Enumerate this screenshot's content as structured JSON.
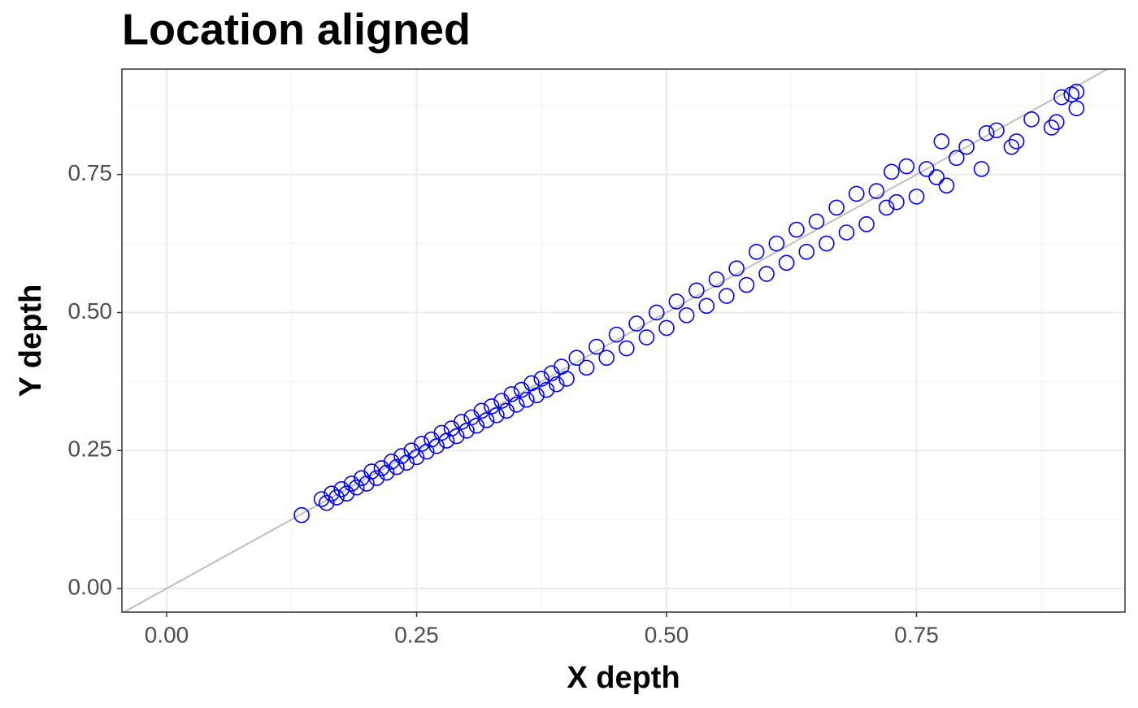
{
  "chart_data": {
    "type": "scatter",
    "title": "Location aligned",
    "x_label": "X depth",
    "y_label": "Y depth",
    "xlim": [
      -0.0447,
      0.9585
    ],
    "ylim": [
      -0.0427,
      0.941
    ],
    "xticks": [
      {
        "value": 0,
        "label": "0.00"
      },
      {
        "value": 0.25,
        "label": "0.25"
      },
      {
        "value": 0.5,
        "label": "0.50"
      },
      {
        "value": 0.75,
        "label": "0.75"
      }
    ],
    "yticks": [
      {
        "value": 0,
        "label": "0.00"
      },
      {
        "value": 0.25,
        "label": "0.25"
      },
      {
        "value": 0.5,
        "label": "0.50"
      },
      {
        "value": 0.75,
        "label": "0.75"
      }
    ],
    "x_minor_ticks": [
      0.125,
      0.375,
      0.625,
      0.875
    ],
    "y_minor_ticks": [
      0.125,
      0.375,
      0.625,
      0.875
    ],
    "grid": true,
    "color": "#0000ff",
    "reference_line": {
      "slope": 1,
      "intercept": 0,
      "color": "#bebebe"
    },
    "x": [
      0.135,
      0.155,
      0.16,
      0.165,
      0.17,
      0.175,
      0.18,
      0.185,
      0.19,
      0.195,
      0.2,
      0.205,
      0.21,
      0.215,
      0.22,
      0.225,
      0.23,
      0.235,
      0.24,
      0.245,
      0.25,
      0.255,
      0.26,
      0.265,
      0.27,
      0.275,
      0.28,
      0.285,
      0.29,
      0.295,
      0.3,
      0.305,
      0.31,
      0.315,
      0.32,
      0.325,
      0.33,
      0.335,
      0.34,
      0.345,
      0.35,
      0.355,
      0.36,
      0.365,
      0.37,
      0.375,
      0.38,
      0.385,
      0.39,
      0.395,
      0.4,
      0.41,
      0.42,
      0.43,
      0.44,
      0.45,
      0.46,
      0.47,
      0.48,
      0.49,
      0.5,
      0.51,
      0.52,
      0.53,
      0.54,
      0.55,
      0.56,
      0.57,
      0.58,
      0.59,
      0.6,
      0.61,
      0.62,
      0.63,
      0.64,
      0.65,
      0.66,
      0.67,
      0.68,
      0.69,
      0.7,
      0.71,
      0.72,
      0.725,
      0.73,
      0.74,
      0.75,
      0.76,
      0.77,
      0.775,
      0.78,
      0.79,
      0.8,
      0.815,
      0.82,
      0.83,
      0.845,
      0.85,
      0.865,
      0.885,
      0.89,
      0.895,
      0.905,
      0.91,
      0.91
    ],
    "y": [
      0.133,
      0.162,
      0.155,
      0.172,
      0.165,
      0.18,
      0.172,
      0.19,
      0.183,
      0.2,
      0.19,
      0.212,
      0.2,
      0.218,
      0.21,
      0.23,
      0.22,
      0.24,
      0.228,
      0.25,
      0.238,
      0.262,
      0.248,
      0.27,
      0.258,
      0.282,
      0.268,
      0.29,
      0.276,
      0.302,
      0.286,
      0.31,
      0.295,
      0.322,
      0.305,
      0.33,
      0.314,
      0.34,
      0.322,
      0.352,
      0.333,
      0.36,
      0.342,
      0.372,
      0.35,
      0.38,
      0.36,
      0.39,
      0.37,
      0.402,
      0.38,
      0.418,
      0.4,
      0.438,
      0.418,
      0.46,
      0.435,
      0.48,
      0.455,
      0.5,
      0.472,
      0.52,
      0.495,
      0.54,
      0.512,
      0.56,
      0.53,
      0.58,
      0.55,
      0.61,
      0.57,
      0.625,
      0.59,
      0.65,
      0.61,
      0.665,
      0.625,
      0.69,
      0.645,
      0.715,
      0.66,
      0.72,
      0.69,
      0.755,
      0.7,
      0.765,
      0.71,
      0.76,
      0.745,
      0.81,
      0.73,
      0.78,
      0.8,
      0.76,
      0.825,
      0.83,
      0.8,
      0.81,
      0.85,
      0.835,
      0.845,
      0.89,
      0.895,
      0.9,
      0.87
    ]
  }
}
